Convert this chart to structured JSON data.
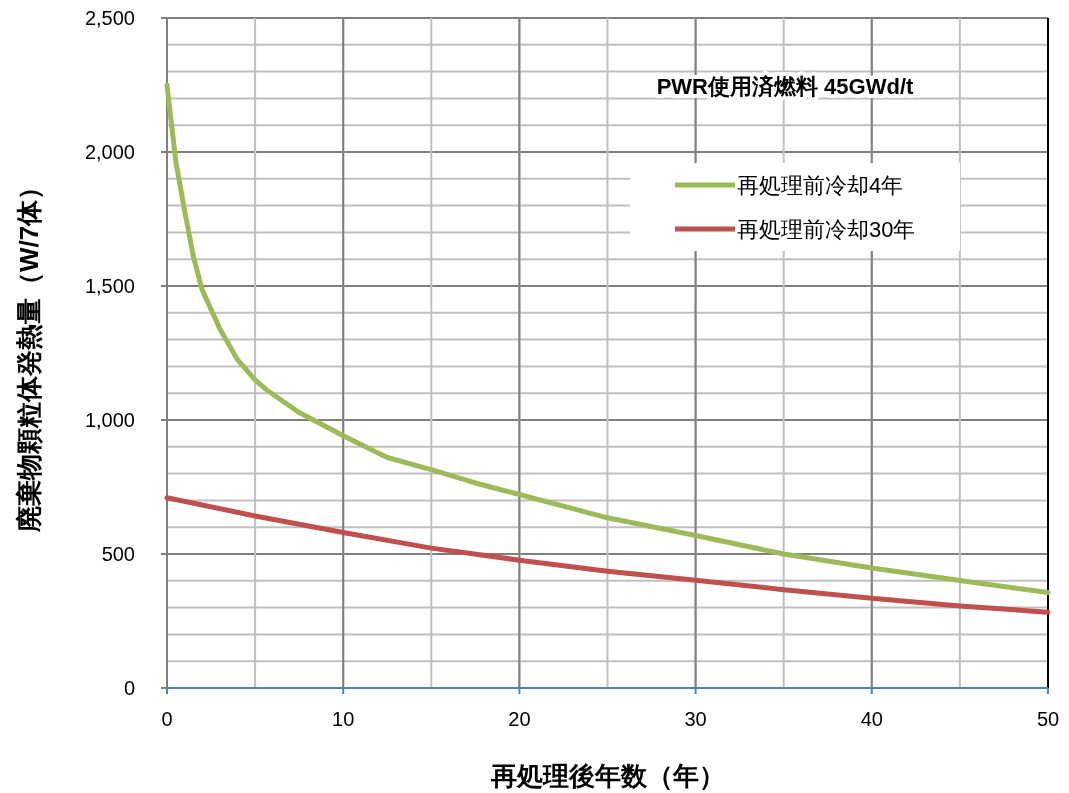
{
  "chart_data": {
    "type": "line",
    "title": "PWR使用済燃料  45GWd/t",
    "xlabel": "再処理後年数（年）",
    "ylabel": "廃棄物顆粒体発熱量（W/7体）",
    "xlim": [
      0,
      50
    ],
    "xticks": [
      0,
      10,
      20,
      30,
      40,
      50
    ],
    "ylim": [
      0,
      2500
    ],
    "yticks": [
      0,
      500,
      {
        "value": 1000,
        "label": "1,000"
      },
      {
        "value": 1500,
        "label": "1,500"
      },
      {
        "value": 2000,
        "label": "2,000"
      },
      {
        "value": 2500,
        "label": "2,500"
      }
    ],
    "grid": true,
    "legend": "top right",
    "line_style": "solid",
    "marker": "none",
    "series": [
      {
        "name": "再処理前冷却4年",
        "color": "#9bbb59",
        "x": [
          0,
          0.5,
          1,
          1.5,
          2,
          3,
          4,
          5,
          5.7,
          7.5,
          10,
          12.5,
          15,
          17.5,
          20,
          25,
          30,
          35,
          40,
          45,
          50
        ],
        "values": [
          2250,
          1965,
          1780,
          1610,
          1485,
          1340,
          1225,
          1150,
          1110,
          1028,
          941,
          860,
          815,
          765,
          722,
          635,
          569,
          500,
          448,
          401,
          356
        ]
      },
      {
        "name": "再処理前冷却30年",
        "color": "#c0504d",
        "x": [
          0,
          5,
          10,
          15,
          20,
          25,
          30,
          35,
          40,
          45,
          50
        ],
        "values": [
          710,
          642,
          580,
          522,
          477,
          436,
          402,
          367,
          335,
          306,
          283
        ]
      }
    ]
  }
}
